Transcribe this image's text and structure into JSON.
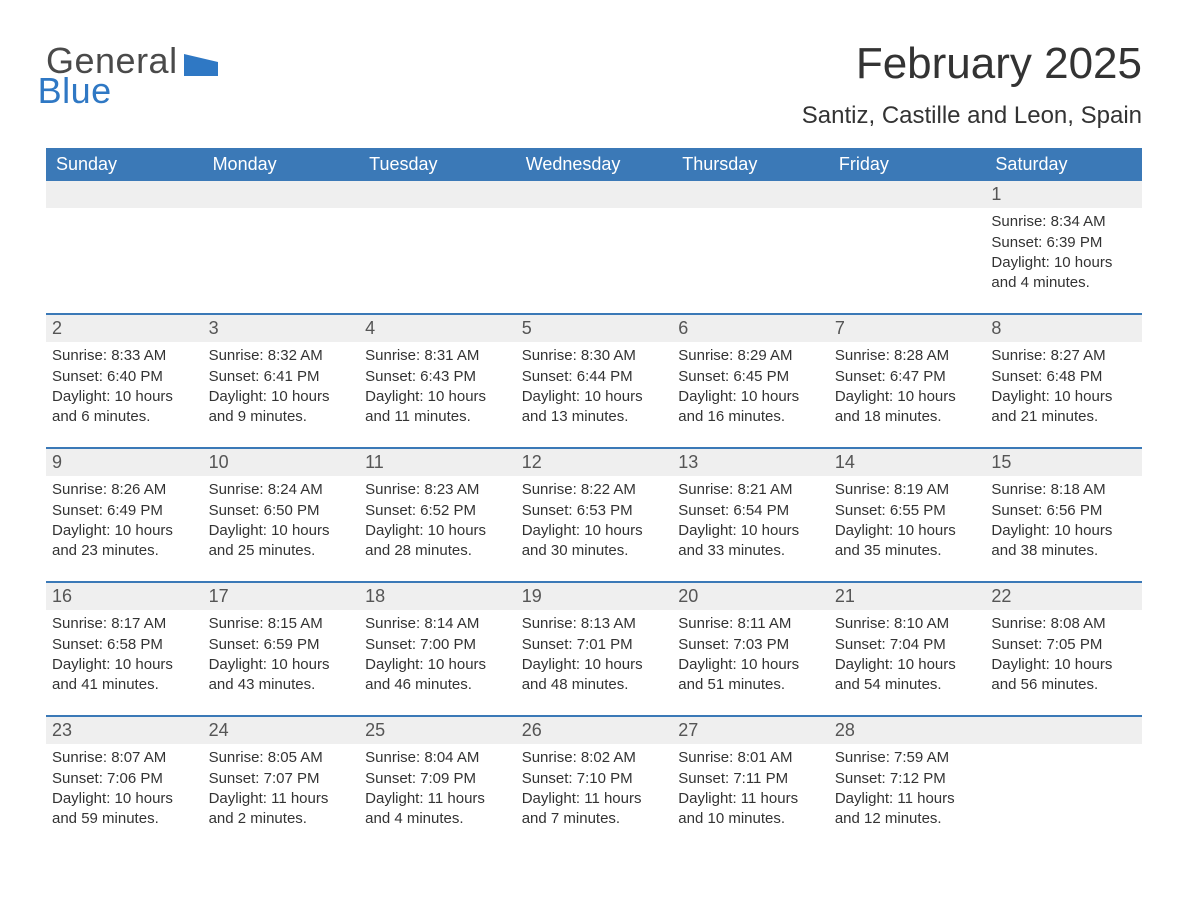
{
  "logo": {
    "word1": "General",
    "word2": "Blue",
    "flag_color": "#2f78c4"
  },
  "title": "February 2025",
  "location": "Santiz, Castille and Leon, Spain",
  "colors": {
    "header_bg": "#3b79b7",
    "header_text": "#ffffff",
    "row_divider": "#3b79b7",
    "daynum_bg": "#efefef",
    "body_text": "#333333",
    "page_bg": "#ffffff"
  },
  "day_names": [
    "Sunday",
    "Monday",
    "Tuesday",
    "Wednesday",
    "Thursday",
    "Friday",
    "Saturday"
  ],
  "weeks": [
    [
      {
        "day": "",
        "sunrise": "",
        "sunset": "",
        "daylight": ""
      },
      {
        "day": "",
        "sunrise": "",
        "sunset": "",
        "daylight": ""
      },
      {
        "day": "",
        "sunrise": "",
        "sunset": "",
        "daylight": ""
      },
      {
        "day": "",
        "sunrise": "",
        "sunset": "",
        "daylight": ""
      },
      {
        "day": "",
        "sunrise": "",
        "sunset": "",
        "daylight": ""
      },
      {
        "day": "",
        "sunrise": "",
        "sunset": "",
        "daylight": ""
      },
      {
        "day": "1",
        "sunrise": "Sunrise: 8:34 AM",
        "sunset": "Sunset: 6:39 PM",
        "daylight": "Daylight: 10 hours and 4 minutes."
      }
    ],
    [
      {
        "day": "2",
        "sunrise": "Sunrise: 8:33 AM",
        "sunset": "Sunset: 6:40 PM",
        "daylight": "Daylight: 10 hours and 6 minutes."
      },
      {
        "day": "3",
        "sunrise": "Sunrise: 8:32 AM",
        "sunset": "Sunset: 6:41 PM",
        "daylight": "Daylight: 10 hours and 9 minutes."
      },
      {
        "day": "4",
        "sunrise": "Sunrise: 8:31 AM",
        "sunset": "Sunset: 6:43 PM",
        "daylight": "Daylight: 10 hours and 11 minutes."
      },
      {
        "day": "5",
        "sunrise": "Sunrise: 8:30 AM",
        "sunset": "Sunset: 6:44 PM",
        "daylight": "Daylight: 10 hours and 13 minutes."
      },
      {
        "day": "6",
        "sunrise": "Sunrise: 8:29 AM",
        "sunset": "Sunset: 6:45 PM",
        "daylight": "Daylight: 10 hours and 16 minutes."
      },
      {
        "day": "7",
        "sunrise": "Sunrise: 8:28 AM",
        "sunset": "Sunset: 6:47 PM",
        "daylight": "Daylight: 10 hours and 18 minutes."
      },
      {
        "day": "8",
        "sunrise": "Sunrise: 8:27 AM",
        "sunset": "Sunset: 6:48 PM",
        "daylight": "Daylight: 10 hours and 21 minutes."
      }
    ],
    [
      {
        "day": "9",
        "sunrise": "Sunrise: 8:26 AM",
        "sunset": "Sunset: 6:49 PM",
        "daylight": "Daylight: 10 hours and 23 minutes."
      },
      {
        "day": "10",
        "sunrise": "Sunrise: 8:24 AM",
        "sunset": "Sunset: 6:50 PM",
        "daylight": "Daylight: 10 hours and 25 minutes."
      },
      {
        "day": "11",
        "sunrise": "Sunrise: 8:23 AM",
        "sunset": "Sunset: 6:52 PM",
        "daylight": "Daylight: 10 hours and 28 minutes."
      },
      {
        "day": "12",
        "sunrise": "Sunrise: 8:22 AM",
        "sunset": "Sunset: 6:53 PM",
        "daylight": "Daylight: 10 hours and 30 minutes."
      },
      {
        "day": "13",
        "sunrise": "Sunrise: 8:21 AM",
        "sunset": "Sunset: 6:54 PM",
        "daylight": "Daylight: 10 hours and 33 minutes."
      },
      {
        "day": "14",
        "sunrise": "Sunrise: 8:19 AM",
        "sunset": "Sunset: 6:55 PM",
        "daylight": "Daylight: 10 hours and 35 minutes."
      },
      {
        "day": "15",
        "sunrise": "Sunrise: 8:18 AM",
        "sunset": "Sunset: 6:56 PM",
        "daylight": "Daylight: 10 hours and 38 minutes."
      }
    ],
    [
      {
        "day": "16",
        "sunrise": "Sunrise: 8:17 AM",
        "sunset": "Sunset: 6:58 PM",
        "daylight": "Daylight: 10 hours and 41 minutes."
      },
      {
        "day": "17",
        "sunrise": "Sunrise: 8:15 AM",
        "sunset": "Sunset: 6:59 PM",
        "daylight": "Daylight: 10 hours and 43 minutes."
      },
      {
        "day": "18",
        "sunrise": "Sunrise: 8:14 AM",
        "sunset": "Sunset: 7:00 PM",
        "daylight": "Daylight: 10 hours and 46 minutes."
      },
      {
        "day": "19",
        "sunrise": "Sunrise: 8:13 AM",
        "sunset": "Sunset: 7:01 PM",
        "daylight": "Daylight: 10 hours and 48 minutes."
      },
      {
        "day": "20",
        "sunrise": "Sunrise: 8:11 AM",
        "sunset": "Sunset: 7:03 PM",
        "daylight": "Daylight: 10 hours and 51 minutes."
      },
      {
        "day": "21",
        "sunrise": "Sunrise: 8:10 AM",
        "sunset": "Sunset: 7:04 PM",
        "daylight": "Daylight: 10 hours and 54 minutes."
      },
      {
        "day": "22",
        "sunrise": "Sunrise: 8:08 AM",
        "sunset": "Sunset: 7:05 PM",
        "daylight": "Daylight: 10 hours and 56 minutes."
      }
    ],
    [
      {
        "day": "23",
        "sunrise": "Sunrise: 8:07 AM",
        "sunset": "Sunset: 7:06 PM",
        "daylight": "Daylight: 10 hours and 59 minutes."
      },
      {
        "day": "24",
        "sunrise": "Sunrise: 8:05 AM",
        "sunset": "Sunset: 7:07 PM",
        "daylight": "Daylight: 11 hours and 2 minutes."
      },
      {
        "day": "25",
        "sunrise": "Sunrise: 8:04 AM",
        "sunset": "Sunset: 7:09 PM",
        "daylight": "Daylight: 11 hours and 4 minutes."
      },
      {
        "day": "26",
        "sunrise": "Sunrise: 8:02 AM",
        "sunset": "Sunset: 7:10 PM",
        "daylight": "Daylight: 11 hours and 7 minutes."
      },
      {
        "day": "27",
        "sunrise": "Sunrise: 8:01 AM",
        "sunset": "Sunset: 7:11 PM",
        "daylight": "Daylight: 11 hours and 10 minutes."
      },
      {
        "day": "28",
        "sunrise": "Sunrise: 7:59 AM",
        "sunset": "Sunset: 7:12 PM",
        "daylight": "Daylight: 11 hours and 12 minutes."
      },
      {
        "day": "",
        "sunrise": "",
        "sunset": "",
        "daylight": ""
      }
    ]
  ]
}
